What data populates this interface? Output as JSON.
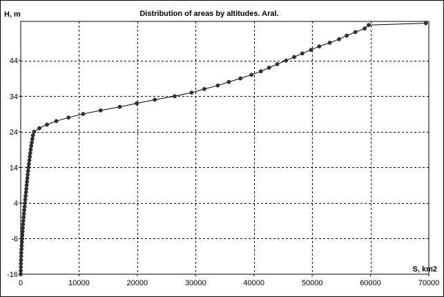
{
  "chart_data": {
    "type": "line",
    "title": "Distribution of areas by altitudes. Aral.",
    "xlabel": "S, km2",
    "ylabel": "H, m",
    "xlim": [
      0,
      70000
    ],
    "ylim": [
      -16,
      55
    ],
    "x_ticks": [
      0,
      10000,
      20000,
      30000,
      40000,
      50000,
      60000,
      70000
    ],
    "x_tick_labels": [
      "0",
      "10000",
      "20000",
      "30000",
      "40000",
      "50000",
      "60000",
      "70000"
    ],
    "y_ticks": [
      -16,
      -6,
      4,
      14,
      24,
      34,
      44
    ],
    "y_tick_labels": [
      "-16",
      "-6",
      "4",
      "14",
      "24",
      "34",
      "44"
    ],
    "grid": true,
    "legend": "none",
    "line_color": "#000000",
    "marker_color": "#333333",
    "series": [
      {
        "points": [
          [
            0,
            -16
          ],
          [
            10,
            -15
          ],
          [
            20,
            -14
          ],
          [
            40,
            -13
          ],
          [
            60,
            -12
          ],
          [
            80,
            -11
          ],
          [
            100,
            -10
          ],
          [
            130,
            -9
          ],
          [
            160,
            -8
          ],
          [
            200,
            -7
          ],
          [
            240,
            -6
          ],
          [
            280,
            -5
          ],
          [
            320,
            -4
          ],
          [
            360,
            -3
          ],
          [
            400,
            -2
          ],
          [
            450,
            -1
          ],
          [
            500,
            0
          ],
          [
            550,
            1
          ],
          [
            600,
            2
          ],
          [
            660,
            3
          ],
          [
            720,
            4
          ],
          [
            780,
            5
          ],
          [
            840,
            6
          ],
          [
            900,
            7
          ],
          [
            960,
            8
          ],
          [
            1020,
            9
          ],
          [
            1080,
            10
          ],
          [
            1140,
            11
          ],
          [
            1200,
            12
          ],
          [
            1270,
            13
          ],
          [
            1340,
            14
          ],
          [
            1410,
            15
          ],
          [
            1480,
            16
          ],
          [
            1550,
            17
          ],
          [
            1630,
            18
          ],
          [
            1710,
            19
          ],
          [
            1800,
            20
          ],
          [
            1900,
            21
          ],
          [
            2000,
            22
          ],
          [
            2100,
            23
          ],
          [
            2300,
            24
          ],
          [
            3200,
            25
          ],
          [
            4500,
            26
          ],
          [
            6100,
            27
          ],
          [
            8200,
            28
          ],
          [
            10700,
            29
          ],
          [
            13700,
            30
          ],
          [
            17000,
            31
          ],
          [
            19900,
            32
          ],
          [
            23000,
            33
          ],
          [
            26400,
            34
          ],
          [
            29300,
            35
          ],
          [
            31500,
            36
          ],
          [
            33800,
            37
          ],
          [
            35700,
            38
          ],
          [
            37700,
            39
          ],
          [
            39600,
            40
          ],
          [
            41200,
            41
          ],
          [
            42600,
            42
          ],
          [
            44000,
            43
          ],
          [
            45500,
            44
          ],
          [
            46900,
            45
          ],
          [
            48300,
            46
          ],
          [
            49800,
            47
          ],
          [
            51200,
            48
          ],
          [
            53000,
            49
          ],
          [
            54600,
            50
          ],
          [
            55900,
            51
          ],
          [
            57400,
            52
          ],
          [
            59000,
            53
          ],
          [
            59700,
            54
          ],
          [
            69500,
            54.5
          ]
        ]
      }
    ]
  }
}
